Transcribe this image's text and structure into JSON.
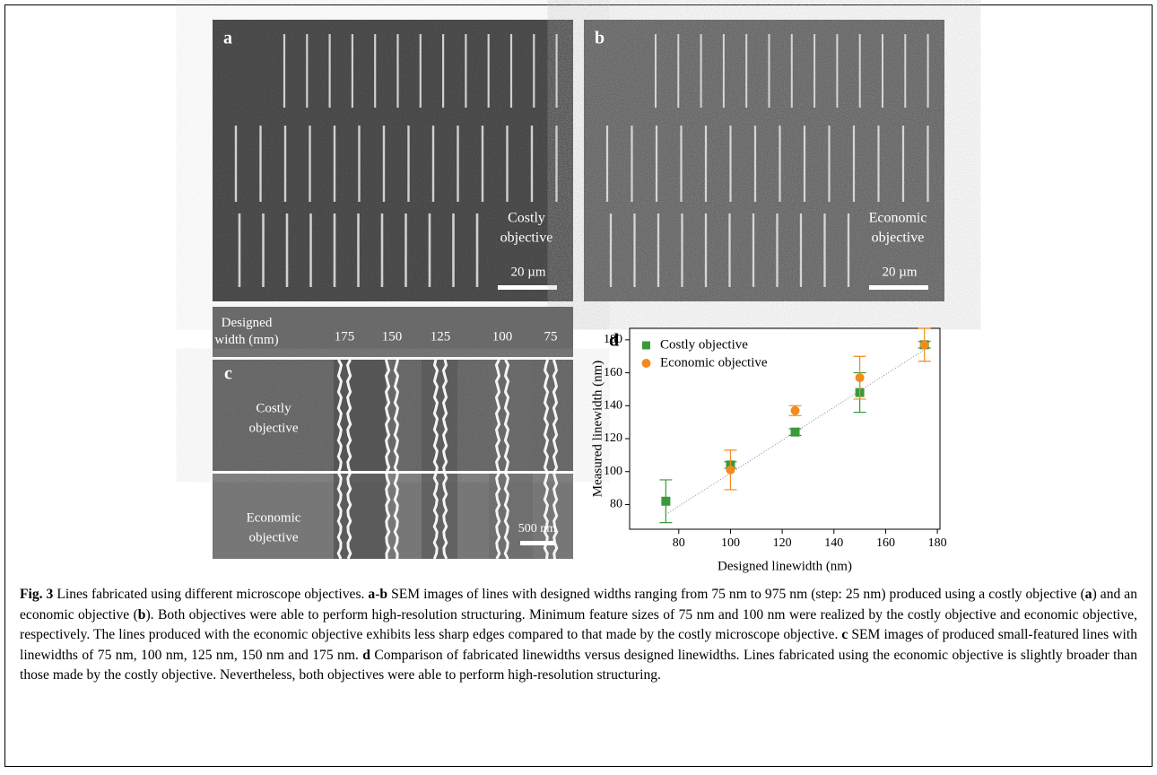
{
  "panel_a": {
    "label": "a",
    "caption": [
      "Costly",
      "objective"
    ],
    "scale_bar": "20 µm"
  },
  "panel_b": {
    "label": "b",
    "caption": [
      "Economic",
      "objective"
    ],
    "scale_bar": "20 µm"
  },
  "width_header": {
    "title": "Designed width (mm)",
    "widths": [
      "175",
      "150",
      "125",
      "100",
      "75"
    ]
  },
  "panel_c": {
    "label": "c",
    "rows": [
      [
        "Costly",
        "objective"
      ],
      [
        "Economic",
        "objective"
      ]
    ],
    "scale_bar": "500 nm"
  },
  "chart_data": {
    "type": "scatter",
    "label": "d",
    "xlabel": "Designed linewidth (nm)",
    "ylabel": "Measured linewidth (nm)",
    "xlim": [
      61,
      181
    ],
    "ylim": [
      65,
      187
    ],
    "xticks": [
      80,
      100,
      120,
      140,
      160,
      180
    ],
    "yticks": [
      80,
      100,
      120,
      140,
      160,
      180
    ],
    "series": [
      {
        "name": "Costly objective",
        "color": "#3a9a3a",
        "marker": "square",
        "x": [
          75,
          100,
          125,
          150,
          175
        ],
        "values": [
          82,
          104,
          124,
          148,
          177
        ],
        "errors": [
          13,
          2,
          2,
          12,
          2
        ]
      },
      {
        "name": "Economic objective",
        "color": "#f28a1e",
        "marker": "circle",
        "x": [
          100,
          125,
          150,
          175
        ],
        "values": [
          101,
          137,
          157,
          177
        ],
        "errors": [
          12,
          3,
          13,
          10
        ]
      }
    ],
    "fit_line": {
      "x": [
        75,
        175
      ],
      "values": [
        74,
        174
      ]
    }
  },
  "caption": [
    {
      "text": "Fig. 3",
      "bold": true
    },
    {
      "text": " Lines fabricated using different microscope objectives. ",
      "bold": false
    },
    {
      "text": "a",
      "bold": true
    },
    {
      "text": "-",
      "bold": false
    },
    {
      "text": "b",
      "bold": true
    },
    {
      "text": " SEM images of lines with designed widths ranging from 75 nm to 975 nm (step: 25 nm) produced using a costly objective (",
      "bold": false
    },
    {
      "text": "a",
      "bold": true
    },
    {
      "text": ") and an economic objective (",
      "bold": false
    },
    {
      "text": "b",
      "bold": true
    },
    {
      "text": "). Both objectives were able to perform high-resolution structuring. Minimum feature sizes of 75 nm and 100 nm were realized by the costly objective and economic objective, respectively. The lines produced with the economic objective exhibits less sharp edges compared to that made by the costly microscope objective. ",
      "bold": false
    },
    {
      "text": "c",
      "bold": true
    },
    {
      "text": " SEM images of produced small-featured lines with linewidths of 75 nm, 100 nm, 125 nm, 150 nm and 175 nm. ",
      "bold": false
    },
    {
      "text": "d",
      "bold": true
    },
    {
      "text": " Comparison of fabricated linewidths versus designed linewidths. Lines fabricated using the economic objective is slightly broader than those made by the costly objective. Nevertheless, both objectives were able to perform high-resolution structuring.",
      "bold": false
    }
  ]
}
